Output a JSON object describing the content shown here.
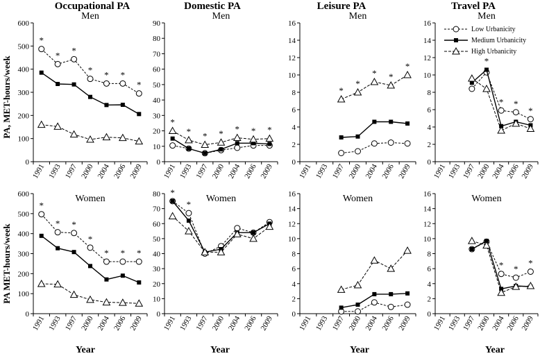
{
  "column_titles": [
    "Occupational PA",
    "Domestic PA",
    "Leisure PA",
    "Travel PA"
  ],
  "row_titles": [
    "Men",
    "Women"
  ],
  "y_axis_labels": [
    "PA, MET-hours/week",
    "PA  MET-hours/week"
  ],
  "x_axis_label": "Year",
  "legend": {
    "entries": [
      "Low Urbanicity",
      "Medium Urbanicity",
      "High Urbanicity"
    ],
    "placement": "top-right of Travel PA (Men) panel"
  },
  "chart_data": [
    {
      "type": "line",
      "title": "Occupational PA",
      "subtitle": "Men",
      "ylabel": "PA, MET-hours/week",
      "xlabel": "",
      "ylim": [
        0,
        600
      ],
      "yticks": [
        0,
        100,
        200,
        300,
        400,
        500,
        600
      ],
      "categories": [
        "1991",
        "1993",
        "1997",
        "2000",
        "2004",
        "2006",
        "2009"
      ],
      "series": [
        {
          "name": "Low Urbanicity",
          "values": [
            487,
            422,
            443,
            358,
            338,
            338,
            295
          ]
        },
        {
          "name": "Medium Urbanicity",
          "values": [
            385,
            336,
            334,
            280,
            245,
            246,
            206
          ]
        },
        {
          "name": "High Urbanicity",
          "values": [
            160,
            152,
            118,
            96,
            106,
            103,
            88
          ]
        }
      ],
      "significance": [
        "*",
        "*",
        "*",
        "*",
        "*",
        "*",
        "*"
      ]
    },
    {
      "type": "line",
      "title": "Domestic PA",
      "subtitle": "Men",
      "ylabel": "",
      "xlabel": "",
      "ylim": [
        0,
        90
      ],
      "yticks": [
        0,
        10,
        20,
        30,
        40,
        50,
        60,
        70,
        80,
        90
      ],
      "categories": [
        "1991",
        "1993",
        "1997",
        "2000",
        "2004",
        "2006",
        "2009"
      ],
      "series": [
        {
          "name": "Low Urbanicity",
          "values": [
            10.5,
            8.5,
            5.5,
            7.5,
            9,
            10.5,
            10.5
          ]
        },
        {
          "name": "Medium Urbanicity",
          "values": [
            15,
            8.5,
            5.5,
            8,
            12,
            12,
            11.5
          ]
        },
        {
          "name": "High Urbanicity",
          "values": [
            20,
            14,
            11,
            12.5,
            15.5,
            14.5,
            15
          ]
        }
      ],
      "significance": [
        "*",
        "*",
        "*",
        "*",
        "*",
        "*",
        "*"
      ]
    },
    {
      "type": "line",
      "title": "Leisure PA",
      "subtitle": "Men",
      "ylabel": "",
      "xlabel": "",
      "ylim": [
        0,
        16
      ],
      "yticks": [
        0,
        2,
        4,
        6,
        8,
        10,
        12,
        14,
        16
      ],
      "categories": [
        "1991",
        "1993",
        "1997",
        "2000",
        "2004",
        "2006",
        "2009"
      ],
      "series": [
        {
          "name": "Low Urbanicity",
          "values": [
            null,
            null,
            1.0,
            1.2,
            2.1,
            2.2,
            2.1
          ]
        },
        {
          "name": "Medium Urbanicity",
          "values": [
            null,
            null,
            2.8,
            2.9,
            4.6,
            4.6,
            4.4
          ]
        },
        {
          "name": "High Urbanicity",
          "values": [
            null,
            null,
            7.2,
            8.0,
            9.2,
            8.8,
            10.0
          ]
        }
      ],
      "significance": [
        "",
        "",
        "*",
        "*",
        "*",
        "*",
        "*"
      ]
    },
    {
      "type": "line",
      "title": "Travel PA",
      "subtitle": "Men",
      "ylabel": "",
      "xlabel": "",
      "ylim": [
        0,
        16
      ],
      "yticks": [
        0,
        2,
        4,
        6,
        8,
        10,
        12,
        14,
        16
      ],
      "categories": [
        "1991",
        "1993",
        "1997",
        "2000",
        "2004",
        "2006",
        "2009"
      ],
      "series": [
        {
          "name": "Low Urbanicity",
          "values": [
            null,
            null,
            8.4,
            10.3,
            5.9,
            5.7,
            4.9
          ]
        },
        {
          "name": "Medium Urbanicity",
          "values": [
            null,
            null,
            9.1,
            10.6,
            4.1,
            4.6,
            4.2
          ]
        },
        {
          "name": "High Urbanicity",
          "values": [
            null,
            null,
            9.6,
            8.4,
            3.6,
            4.4,
            3.8
          ]
        }
      ],
      "significance": [
        "",
        "",
        "",
        "*",
        "*",
        "*",
        "*"
      ]
    },
    {
      "type": "line",
      "title": "",
      "subtitle": "Women",
      "ylabel": "PA  MET-hours/week",
      "xlabel": "Year",
      "ylim": [
        0,
        600
      ],
      "yticks": [
        0,
        100,
        200,
        300,
        400,
        500,
        600
      ],
      "categories": [
        "1991",
        "1993",
        "1997",
        "2000",
        "2004",
        "2006",
        "2009"
      ],
      "series": [
        {
          "name": "Low Urbanicity",
          "values": [
            497,
            407,
            403,
            330,
            260,
            260,
            260
          ]
        },
        {
          "name": "Medium Urbanicity",
          "values": [
            389,
            327,
            308,
            238,
            171,
            190,
            156
          ]
        },
        {
          "name": "High Urbanicity",
          "values": [
            149,
            147,
            95,
            70,
            57,
            55,
            51
          ]
        }
      ],
      "significance": [
        "*",
        "*",
        "*",
        "*",
        "*",
        "*",
        "*"
      ]
    },
    {
      "type": "line",
      "title": "",
      "subtitle": "Women",
      "ylabel": "",
      "xlabel": "Year",
      "ylim": [
        0,
        80
      ],
      "yticks": [
        0,
        10,
        20,
        30,
        40,
        50,
        60,
        70,
        80
      ],
      "categories": [
        "1991",
        "1993",
        "1997",
        "2000",
        "2004",
        "2006",
        "2009"
      ],
      "series": [
        {
          "name": "Low Urbanicity",
          "values": [
            75,
            67,
            40,
            45,
            57,
            54,
            61
          ]
        },
        {
          "name": "Medium Urbanicity",
          "values": [
            75,
            62,
            41,
            43,
            54,
            54,
            60
          ]
        },
        {
          "name": "High Urbanicity",
          "values": [
            65,
            55,
            41,
            41,
            53,
            50,
            58
          ]
        }
      ],
      "significance": [
        "*",
        "*",
        "",
        "",
        "",
        "",
        ""
      ]
    },
    {
      "type": "line",
      "title": "",
      "subtitle": "Women",
      "ylabel": "",
      "xlabel": "Year",
      "ylim": [
        0,
        16
      ],
      "yticks": [
        0,
        2,
        4,
        6,
        8,
        10,
        12,
        14,
        16
      ],
      "categories": [
        "1991",
        "1993",
        "1997",
        "2000",
        "2004",
        "2006",
        "2009"
      ],
      "series": [
        {
          "name": "Low Urbanicity",
          "values": [
            null,
            null,
            0.3,
            0.3,
            1.5,
            0.9,
            1.2
          ]
        },
        {
          "name": "Medium Urbanicity",
          "values": [
            null,
            null,
            0.8,
            1.2,
            2.6,
            2.6,
            2.7
          ]
        },
        {
          "name": "High Urbanicity",
          "values": [
            null,
            null,
            3.2,
            3.8,
            7.1,
            6.0,
            8.4
          ]
        }
      ],
      "significance": [
        "",
        "",
        "",
        "",
        "",
        "",
        ""
      ]
    },
    {
      "type": "line",
      "title": "",
      "subtitle": "Women",
      "ylabel": "",
      "xlabel": "Year",
      "ylim": [
        0,
        16
      ],
      "yticks": [
        0,
        2,
        4,
        6,
        8,
        10,
        12,
        14,
        16
      ],
      "categories": [
        "1991",
        "1993",
        "1997",
        "2000",
        "2004",
        "2006",
        "2009"
      ],
      "series": [
        {
          "name": "Low Urbanicity",
          "values": [
            null,
            null,
            8.6,
            9.6,
            5.3,
            4.8,
            5.6
          ]
        },
        {
          "name": "Medium Urbanicity",
          "values": [
            null,
            null,
            8.6,
            9.7,
            3.3,
            3.7,
            3.6
          ]
        },
        {
          "name": "High Urbanicity",
          "values": [
            null,
            null,
            9.7,
            9.1,
            2.8,
            3.6,
            3.7
          ]
        }
      ],
      "significance": [
        "",
        "",
        "",
        "",
        "*",
        "*",
        "*"
      ]
    }
  ]
}
